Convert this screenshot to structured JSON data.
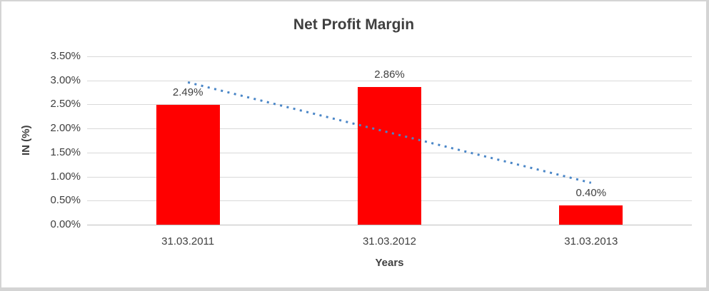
{
  "chart_data": {
    "type": "bar",
    "title": "Net Profit Margin",
    "categories": [
      "31.03.2011",
      "31.03.2012",
      "31.03.2013"
    ],
    "values": [
      2.49,
      2.86,
      0.4
    ],
    "data_labels": [
      "2.49%",
      "2.86%",
      "0.40%"
    ],
    "xlabel": "Years",
    "ylabel": "IN (%)",
    "ylim": [
      0,
      3.5
    ],
    "ytick_step": 0.5,
    "ytick_labels": [
      "0.00%",
      "0.50%",
      "1.00%",
      "1.50%",
      "2.00%",
      "2.50%",
      "3.00%",
      "3.50%"
    ],
    "grid": true,
    "legend_position": "none",
    "bar_color": "#FF0000",
    "trendline": {
      "type": "linear",
      "style": "dotted",
      "color": "#4A86C7",
      "start_value": 2.96,
      "end_value": 0.87
    },
    "colors": {
      "title_text": "#3F3F3F",
      "axis_text": "#3F3F3F",
      "gridline": "#D9D9D9",
      "axis_line": "#BFBFBF",
      "frame_border": "#D4D4D4",
      "background": "#FFFFFF"
    }
  }
}
